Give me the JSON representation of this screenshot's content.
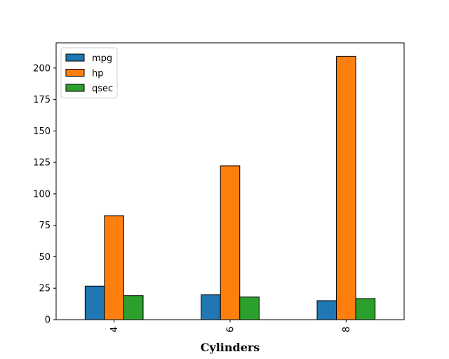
{
  "chart_data": {
    "type": "bar",
    "title": "",
    "xlabel": "Cylinders",
    "ylabel": "",
    "categories": [
      "4",
      "6",
      "8"
    ],
    "series": [
      {
        "name": "mpg",
        "color": "#1f77b4",
        "values": [
          26.66,
          19.74,
          15.1
        ]
      },
      {
        "name": "hp",
        "color": "#ff7f0e",
        "values": [
          82.64,
          122.29,
          209.21
        ]
      },
      {
        "name": "qsec",
        "color": "#2ca02c",
        "values": [
          19.14,
          17.98,
          16.77
        ]
      }
    ],
    "ylim": [
      0,
      220
    ],
    "yticks": [
      0,
      25,
      50,
      75,
      100,
      125,
      150,
      175,
      200
    ],
    "grid": false,
    "legend_position": "top-left",
    "xtick_rotation": 90
  }
}
